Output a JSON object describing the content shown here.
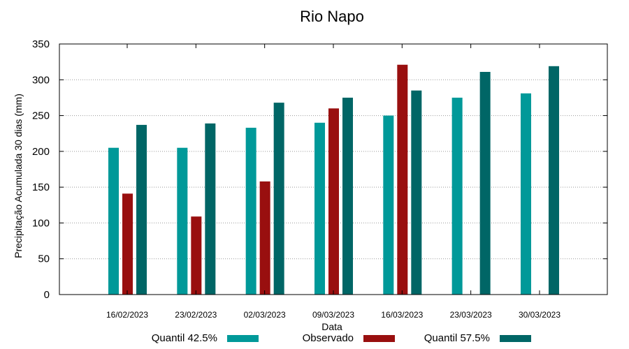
{
  "chart_data": {
    "type": "bar",
    "title": "Rio Napo",
    "xlabel": "Data",
    "ylabel": "Precipitação Acumulada 30 dias (mm)",
    "ylim": [
      0,
      350
    ],
    "yticks": [
      0,
      50,
      100,
      150,
      200,
      250,
      300,
      350
    ],
    "grid": true,
    "legend_position": "bottom",
    "categories": [
      "16/02/2023",
      "23/02/2023",
      "02/03/2023",
      "09/03/2023",
      "16/03/2023",
      "23/03/2023",
      "30/03/2023"
    ],
    "series": [
      {
        "name": "Quantil 42.5%",
        "color": "#009999",
        "values": [
          205,
          205,
          233,
          240,
          250,
          275,
          281
        ]
      },
      {
        "name": "Observado",
        "color": "#990f0f",
        "values": [
          141,
          109,
          158,
          260,
          321,
          null,
          null
        ]
      },
      {
        "name": "Quantil 57.5%",
        "color": "#006666",
        "values": [
          237,
          239,
          268,
          275,
          285,
          311,
          319
        ]
      }
    ]
  }
}
